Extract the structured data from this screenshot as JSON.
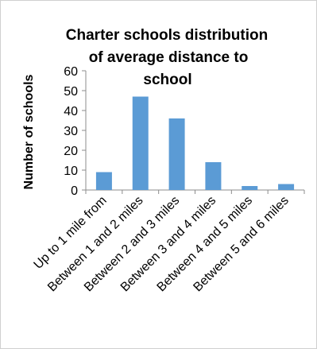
{
  "chart_data": {
    "type": "bar",
    "title_lines": [
      "Charter schools distribution",
      "of average distance to",
      "school"
    ],
    "ylabel": "Number of schools",
    "xlabel": "",
    "categories": [
      "Up to 1 mile from",
      "Between 1 and 2 miles",
      "Between 2 and 3 miles",
      "Between 3 and 4 miles",
      "Between 4 and 5 miles",
      "Between 5 and 6 miles"
    ],
    "values": [
      9,
      47,
      36,
      14,
      2,
      3
    ],
    "ylim": [
      0,
      60
    ],
    "yticks": [
      0,
      10,
      20,
      30,
      40,
      50,
      60
    ],
    "grid": false,
    "legend": "none",
    "bar_color": "#5b9bd5"
  }
}
